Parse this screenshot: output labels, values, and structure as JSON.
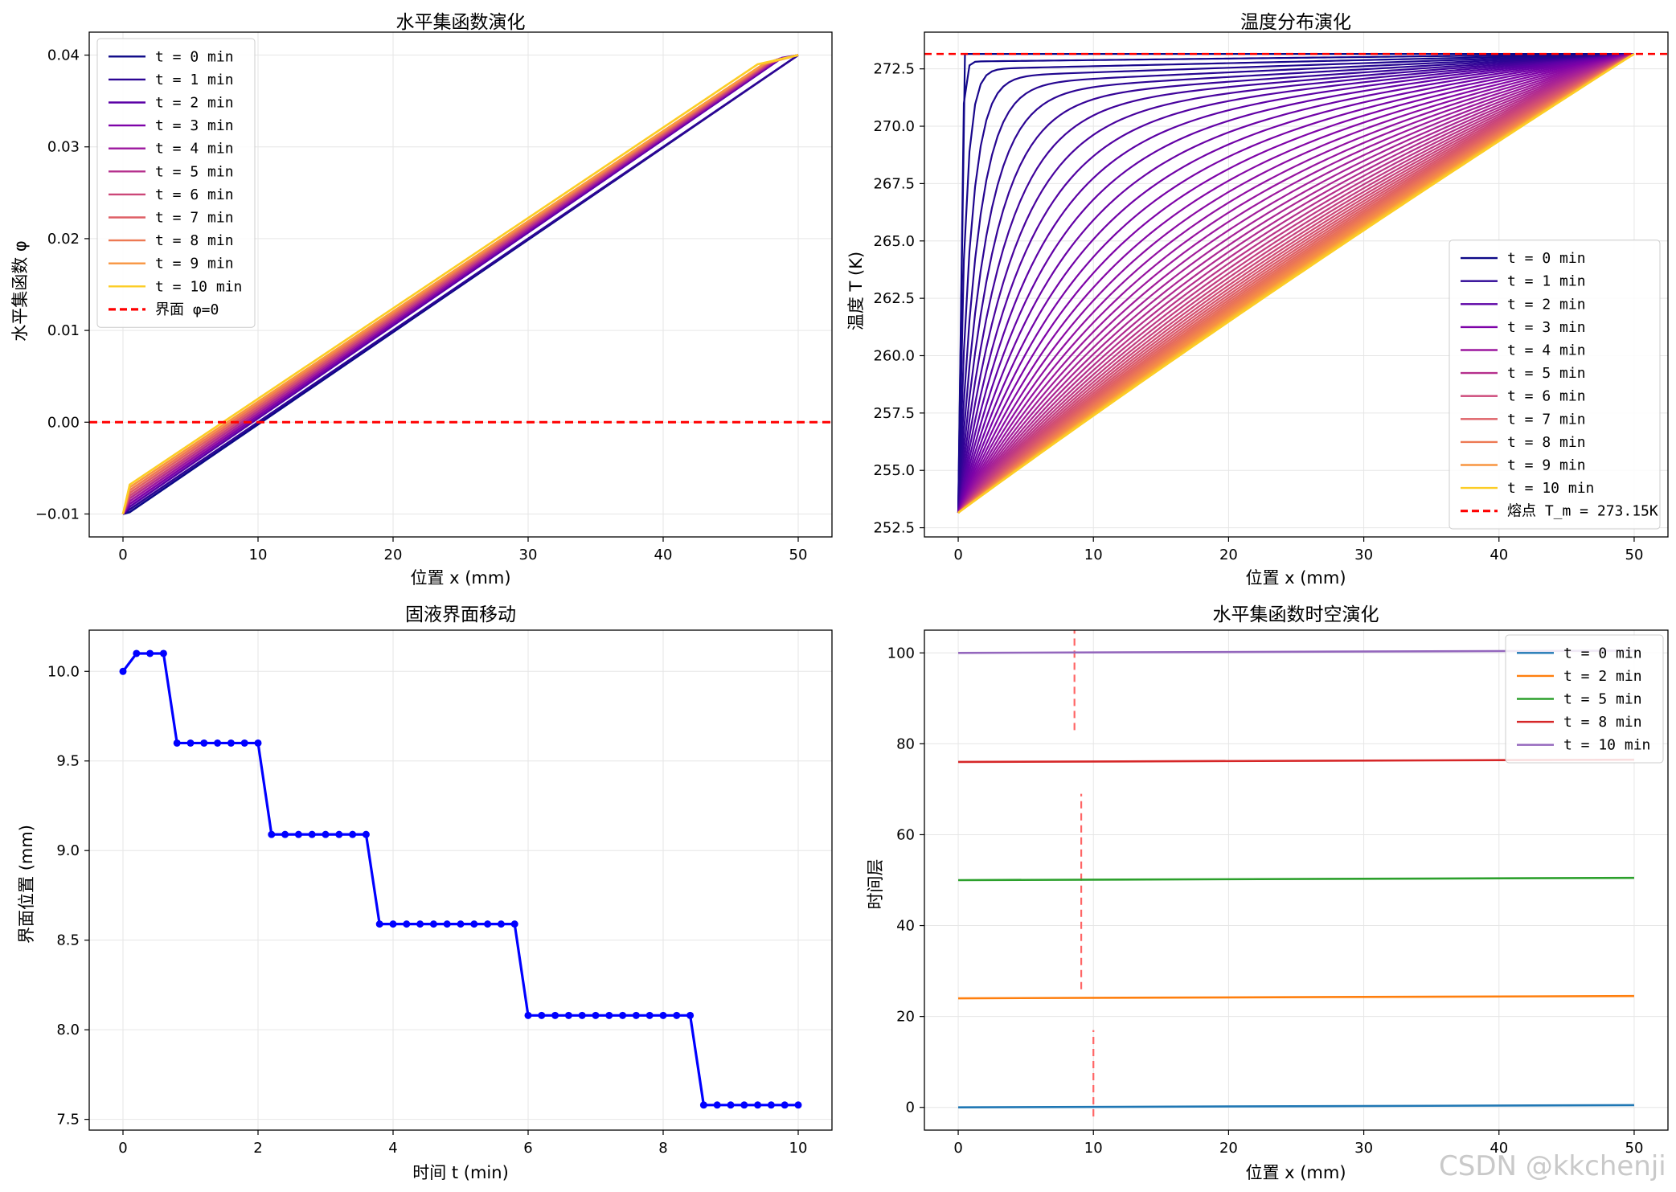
{
  "watermark": "CSDN @kkchenji",
  "chart_data": [
    {
      "type": "line",
      "title": "水平集函数演化",
      "xlabel": "位置 x (mm)",
      "ylabel": "水平集函数 φ",
      "xlim": [
        -2.5,
        52.5
      ],
      "ylim": [
        -0.0125,
        0.0425
      ],
      "xticks": [
        0,
        10,
        20,
        30,
        40,
        50
      ],
      "xtick_labels": [
        "0",
        "10",
        "20",
        "30",
        "40",
        "50"
      ],
      "yticks": [
        -0.01,
        0.0,
        0.01,
        0.02,
        0.03,
        0.04
      ],
      "ytick_labels": [
        "−0.01",
        "0.00",
        "0.01",
        "0.02",
        "0.03",
        "0.04"
      ],
      "grid": true,
      "legend_position": "upper-left",
      "series": [
        {
          "name": "t = 0 min",
          "color": "#0d0887",
          "x": [
            0,
            0.5,
            50
          ],
          "y": [
            -0.01,
            -0.0098,
            0.04
          ]
        },
        {
          "name": "t = 1 min",
          "color": "#2c0594",
          "x": [
            0,
            0.5,
            50
          ],
          "y": [
            -0.01,
            -0.0095,
            0.04
          ]
        },
        {
          "name": "t = 2 min",
          "color": "#5b01a5",
          "x": [
            0,
            0.5,
            48.8,
            50
          ],
          "y": [
            -0.01,
            -0.0092,
            0.0397,
            0.04
          ]
        },
        {
          "name": "t = 3 min",
          "color": "#7e03a8",
          "x": [
            0,
            0.5,
            48.6,
            50
          ],
          "y": [
            -0.01,
            -0.0089,
            0.0396,
            0.04
          ]
        },
        {
          "name": "t = 4 min",
          "color": "#9c179e",
          "x": [
            0,
            0.5,
            48.4,
            50
          ],
          "y": [
            -0.01,
            -0.0086,
            0.0395,
            0.04
          ]
        },
        {
          "name": "t = 5 min",
          "color": "#b52f8c",
          "x": [
            0,
            0.5,
            48.2,
            50
          ],
          "y": [
            -0.01,
            -0.0083,
            0.0394,
            0.04
          ]
        },
        {
          "name": "t = 6 min",
          "color": "#cc4778",
          "x": [
            0,
            0.5,
            48.0,
            50
          ],
          "y": [
            -0.01,
            -0.008,
            0.0393,
            0.04
          ]
        },
        {
          "name": "t = 7 min",
          "color": "#de5f65",
          "x": [
            0,
            0.5,
            47.8,
            50
          ],
          "y": [
            -0.01,
            -0.0077,
            0.0392,
            0.04
          ]
        },
        {
          "name": "t = 8 min",
          "color": "#ed7953",
          "x": [
            0,
            0.5,
            47.6,
            50
          ],
          "y": [
            -0.01,
            -0.0074,
            0.0391,
            0.04
          ]
        },
        {
          "name": "t = 9 min",
          "color": "#f89540",
          "x": [
            0,
            0.5,
            47.4,
            50
          ],
          "y": [
            -0.01,
            -0.0071,
            0.039,
            0.04
          ]
        },
        {
          "name": "t = 10 min",
          "color": "#fccd25",
          "x": [
            0,
            0.5,
            47.0,
            50
          ],
          "y": [
            -0.01,
            -0.0068,
            0.039,
            0.04
          ]
        }
      ],
      "hlines": [
        {
          "name": "界面 φ=0",
          "y": 0.0,
          "color": "#ff0000",
          "style": "dashed"
        }
      ]
    },
    {
      "type": "line",
      "title": "温度分布演化",
      "xlabel": "位置 x (mm)",
      "ylabel": "温度 T (K)",
      "xlim": [
        -2.5,
        52.5
      ],
      "ylim": [
        252.1,
        274.1
      ],
      "xticks": [
        0,
        10,
        20,
        30,
        40,
        50
      ],
      "xtick_labels": [
        "0",
        "10",
        "20",
        "30",
        "40",
        "50"
      ],
      "yticks": [
        252.5,
        255.0,
        257.5,
        260.0,
        262.5,
        265.0,
        267.5,
        270.0,
        272.5
      ],
      "ytick_labels": [
        "252.5",
        "255.0",
        "257.5",
        "260.0",
        "262.5",
        "265.0",
        "267.5",
        "270.0",
        "272.5"
      ],
      "grid": true,
      "legend_position": "lower-right",
      "profile": {
        "x_start": 0,
        "x_end": 50,
        "T_cold": 253.15,
        "T_melt": 273.15,
        "initial_jump_x": 0.5,
        "curve_count": 51
      },
      "series": [
        {
          "name": "t = 0 min",
          "color": "#0d0887"
        },
        {
          "name": "t = 1 min",
          "color": "#2c0594"
        },
        {
          "name": "t = 2 min",
          "color": "#5b01a5"
        },
        {
          "name": "t = 3 min",
          "color": "#7e03a8"
        },
        {
          "name": "t = 4 min",
          "color": "#9c179e"
        },
        {
          "name": "t = 5 min",
          "color": "#b52f8c"
        },
        {
          "name": "t = 6 min",
          "color": "#cc4778"
        },
        {
          "name": "t = 7 min",
          "color": "#de5f65"
        },
        {
          "name": "t = 8 min",
          "color": "#ed7953"
        },
        {
          "name": "t = 9 min",
          "color": "#f89540"
        },
        {
          "name": "t = 10 min",
          "color": "#fccd25"
        }
      ],
      "hlines": [
        {
          "name": "熔点 T_m = 273.15K",
          "y": 273.15,
          "color": "#ff0000",
          "style": "dashed"
        }
      ]
    },
    {
      "type": "line",
      "title": "固液界面移动",
      "xlabel": "时间 t (min)",
      "ylabel": "界面位置 (mm)",
      "xlim": [
        -0.5,
        10.5
      ],
      "ylim": [
        7.44,
        10.23
      ],
      "xticks": [
        0,
        2,
        4,
        6,
        8,
        10
      ],
      "xtick_labels": [
        "0",
        "2",
        "4",
        "6",
        "8",
        "10"
      ],
      "yticks": [
        7.5,
        8.0,
        8.5,
        9.0,
        9.5,
        10.0
      ],
      "ytick_labels": [
        "7.5",
        "8.0",
        "8.5",
        "9.0",
        "9.5",
        "10.0"
      ],
      "grid": true,
      "color": "#0000ff",
      "x": [
        0,
        0.2,
        0.4,
        0.6,
        0.8,
        1.0,
        1.2,
        1.4,
        1.6,
        1.8,
        2.0,
        2.2,
        2.4,
        2.6,
        2.8,
        3.0,
        3.2,
        3.4,
        3.6,
        3.8,
        4.0,
        4.2,
        4.4,
        4.6,
        4.8,
        5.0,
        5.2,
        5.4,
        5.6,
        5.8,
        6.0,
        6.2,
        6.4,
        6.6,
        6.8,
        7.0,
        7.2,
        7.4,
        7.6,
        7.8,
        8.0,
        8.2,
        8.4,
        8.6,
        8.8,
        9.0,
        9.2,
        9.4,
        9.6,
        9.8,
        10.0
      ],
      "y": [
        10.0,
        10.1,
        10.1,
        10.1,
        9.6,
        9.6,
        9.6,
        9.6,
        9.6,
        9.6,
        9.6,
        9.09,
        9.09,
        9.09,
        9.09,
        9.09,
        9.09,
        9.09,
        9.09,
        8.59,
        8.59,
        8.59,
        8.59,
        8.59,
        8.59,
        8.59,
        8.59,
        8.59,
        8.59,
        8.59,
        8.08,
        8.08,
        8.08,
        8.08,
        8.08,
        8.08,
        8.08,
        8.08,
        8.08,
        8.08,
        8.08,
        8.08,
        8.08,
        7.58,
        7.58,
        7.58,
        7.58,
        7.58,
        7.58,
        7.58,
        7.58
      ]
    },
    {
      "type": "line",
      "title": "水平集函数时空演化",
      "xlabel": "位置 x (mm)",
      "ylabel": "时间层",
      "xlim": [
        -2.5,
        52.5
      ],
      "ylim": [
        -5,
        105
      ],
      "xticks": [
        0,
        10,
        20,
        30,
        40,
        50
      ],
      "xtick_labels": [
        "0",
        "10",
        "20",
        "30",
        "40",
        "50"
      ],
      "yticks": [
        0,
        20,
        40,
        60,
        80,
        100
      ],
      "ytick_labels": [
        "0",
        "20",
        "40",
        "60",
        "80",
        "100"
      ],
      "grid": true,
      "legend_position": "upper-right",
      "series": [
        {
          "name": "t = 0 min",
          "color": "#1f77b4",
          "x": [
            0,
            50
          ],
          "y": [
            0.0,
            0.5
          ]
        },
        {
          "name": "t = 2 min",
          "color": "#ff7f0e",
          "x": [
            0,
            50
          ],
          "y": [
            24.0,
            24.5
          ]
        },
        {
          "name": "t = 5 min",
          "color": "#2ca02c",
          "x": [
            0,
            50
          ],
          "y": [
            50.0,
            50.5
          ]
        },
        {
          "name": "t = 8 min",
          "color": "#d62728",
          "x": [
            0,
            50
          ],
          "y": [
            76.0,
            76.5
          ]
        },
        {
          "name": "t = 10 min",
          "color": "#9467bd",
          "x": [
            0,
            50
          ],
          "y": [
            100.0,
            100.5
          ]
        }
      ],
      "interface_markers": [
        {
          "x": 10.0,
          "y_from": -2,
          "y_to": 17
        },
        {
          "x": 9.1,
          "y_from": 26,
          "y_to": 69
        },
        {
          "x": 8.6,
          "y_from": 83,
          "y_to": 105
        }
      ],
      "marker_color": "#ff6666"
    }
  ]
}
